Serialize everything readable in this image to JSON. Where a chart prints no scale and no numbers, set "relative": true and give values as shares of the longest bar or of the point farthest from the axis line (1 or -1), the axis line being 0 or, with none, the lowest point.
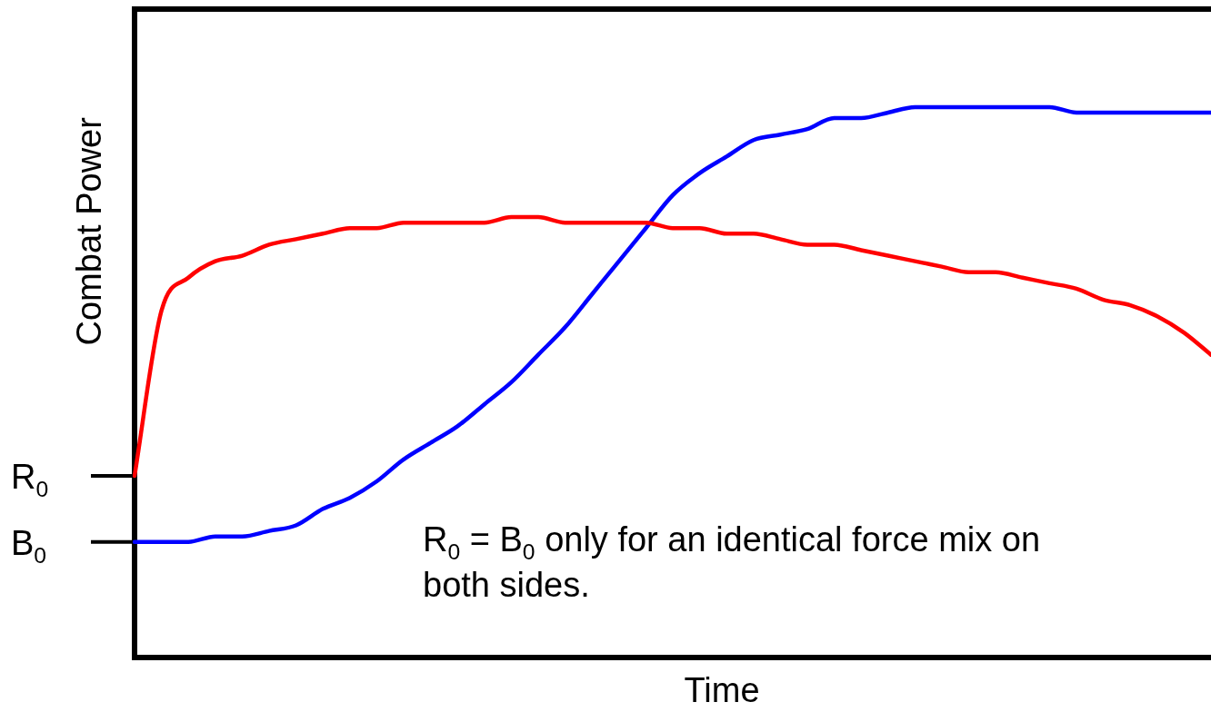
{
  "chart_data": {
    "type": "line",
    "relative": true,
    "xlabel": "Time",
    "ylabel": "Combat Power",
    "categories": [
      null,
      null,
      null,
      null,
      null,
      null,
      null,
      null,
      null,
      null,
      null,
      null,
      null,
      null,
      null,
      null,
      null,
      null,
      null,
      null,
      null,
      null,
      null,
      null,
      null,
      null,
      null,
      null,
      null,
      null,
      null,
      null,
      null,
      null,
      null,
      null,
      null,
      null,
      null,
      null,
      null
    ],
    "series": [
      {
        "color": "#ff0000",
        "values": [
          0.33,
          0.63,
          0.69,
          0.72,
          0.73,
          0.75,
          0.76,
          0.77,
          0.78,
          0.78,
          0.79,
          0.79,
          0.79,
          0.79,
          0.8,
          0.8,
          0.79,
          0.79,
          0.79,
          0.79,
          0.78,
          0.78,
          0.77,
          0.77,
          0.76,
          0.75,
          0.75,
          0.74,
          0.73,
          0.72,
          0.71,
          0.7,
          0.7,
          0.69,
          0.68,
          0.67,
          0.65,
          0.64,
          0.62,
          0.59,
          0.55
        ]
      },
      {
        "color": "#0000ff",
        "values": [
          0.21,
          0.21,
          0.21,
          0.22,
          0.22,
          0.23,
          0.24,
          0.27,
          0.29,
          0.32,
          0.36,
          0.39,
          0.42,
          0.46,
          0.5,
          0.55,
          0.6,
          0.66,
          0.72,
          0.78,
          0.84,
          0.88,
          0.91,
          0.94,
          0.95,
          0.96,
          0.98,
          0.98,
          0.99,
          1.0,
          1.0,
          1.0,
          1.0,
          1.0,
          1.0,
          0.99,
          0.99,
          0.99,
          0.99,
          0.99,
          0.99
        ]
      }
    ],
    "annotations": [
      "R$_{0}$",
      "B$_{0}$",
      "R$_{0}$ = B$_{0}$ only for an identical force mix on both sides."
    ],
    "legend": false,
    "marker": "none",
    "line_style": "solid"
  }
}
